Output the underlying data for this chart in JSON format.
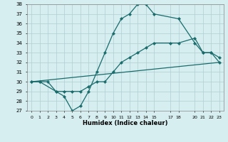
{
  "xlabel": "Humidex (Indice chaleur)",
  "background_color": "#d6eef0",
  "grid_color": "#b0cdd0",
  "line_color": "#1a6b6b",
  "ylim": [
    27,
    38
  ],
  "xlim": [
    -0.5,
    23.5
  ],
  "yticks": [
    27,
    28,
    29,
    30,
    31,
    32,
    33,
    34,
    35,
    36,
    37,
    38
  ],
  "xticks": [
    0,
    1,
    2,
    3,
    4,
    5,
    6,
    7,
    8,
    9,
    10,
    11,
    12,
    13,
    14,
    15,
    17,
    18,
    20,
    21,
    22,
    23
  ],
  "xtick_labels": [
    "0",
    "1",
    "2",
    "3",
    "4",
    "5",
    "6",
    "7",
    "8",
    "9",
    "10",
    "11",
    "12",
    "13",
    "14",
    "15",
    "17",
    "18",
    "20",
    "21",
    "22",
    "23"
  ],
  "line1_x": [
    0,
    1,
    3,
    4,
    5,
    6,
    7,
    8,
    9,
    10,
    11,
    12,
    13,
    14,
    15,
    18,
    20,
    21,
    22,
    23
  ],
  "line1_y": [
    30,
    30,
    29,
    28.5,
    27,
    27.5,
    29,
    31,
    33,
    35,
    36.5,
    37,
    38,
    38,
    37,
    36.5,
    34,
    33,
    33,
    32
  ],
  "line2_x": [
    0,
    1,
    2,
    3,
    4,
    5,
    6,
    7,
    8,
    9,
    10,
    11,
    12,
    13,
    14,
    15,
    17,
    18,
    20,
    21,
    22,
    23
  ],
  "line2_y": [
    30,
    30,
    30,
    29,
    29,
    29,
    29,
    29.5,
    30,
    30,
    31,
    32,
    32.5,
    33,
    33.5,
    34,
    34,
    34,
    34.5,
    33,
    33,
    32.5
  ],
  "line3_x": [
    0,
    23
  ],
  "line3_y": [
    30,
    32
  ]
}
